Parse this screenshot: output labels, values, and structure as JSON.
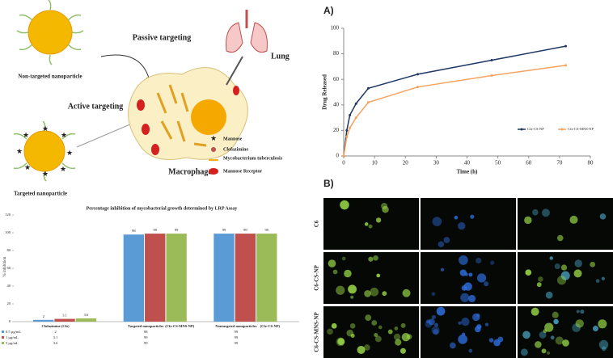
{
  "panels": {
    "a": "A)",
    "b": "B)"
  },
  "diagram": {
    "passive": "Passive targeting",
    "non_targeted": "Non-targeted nanoparticle",
    "active": "Active targeting",
    "targeted": "Targeted nanoparticle",
    "lung": "Lung",
    "macrophage": "Macrophage",
    "legend": [
      "Mannose",
      "Clofazimine",
      "Mycobacterium tuberculosis",
      "Mannose Receptor"
    ]
  },
  "chart_data": [
    {
      "type": "bar",
      "title": "Percentage inhibition of mycobacterial growth determined by LRP Assay",
      "y_label": "% inhibition",
      "categories": [
        "Clofazimine (Cfz)",
        "Targeted nanoparticles",
        "Nontargeted nanoparticles"
      ],
      "category_notes": [
        null,
        "(Cfz-CS-MNS-NP)",
        "(Cfz-CS-NP)"
      ],
      "series": [
        {
          "name": "0.5 µg/mL",
          "color": "#5b9bd5",
          "values": [
            2,
            98,
            99
          ]
        },
        {
          "name": "1 µg/mL",
          "color": "#c0504d",
          "values": [
            3.1,
            99,
            99
          ]
        },
        {
          "name": "5 µg/mL",
          "color": "#9bbb59",
          "values": [
            3.6,
            99,
            99
          ]
        }
      ],
      "ylim": [
        0,
        120
      ],
      "yticks": [
        0,
        20,
        40,
        60,
        80,
        100,
        120
      ],
      "grid": false
    },
    {
      "type": "line",
      "x_label": "Time (h)",
      "y_label": "Drug Released",
      "x": [
        0,
        1,
        2,
        4,
        8,
        24,
        48,
        72
      ],
      "series": [
        {
          "name": "Cfz-CS-NP",
          "color": "#1f3864",
          "values": [
            0,
            20,
            32,
            41,
            53,
            64,
            75,
            86
          ]
        },
        {
          "name": "Cfz-CS-MNS-NP",
          "color": "#f4a460",
          "values": [
            0,
            15,
            22,
            30,
            42,
            54,
            63,
            71
          ]
        }
      ],
      "xlim": [
        0,
        80
      ],
      "xticks": [
        0,
        10,
        20,
        30,
        40,
        50,
        60,
        70,
        80
      ],
      "ylim": [
        0,
        100
      ],
      "yticks": [
        0,
        20,
        40,
        60,
        80,
        100
      ],
      "legend": "lower-right"
    }
  ],
  "microscopy": {
    "rows": [
      "C6",
      "C6-CS-NP",
      "C6-CS-MNS-NP"
    ]
  }
}
